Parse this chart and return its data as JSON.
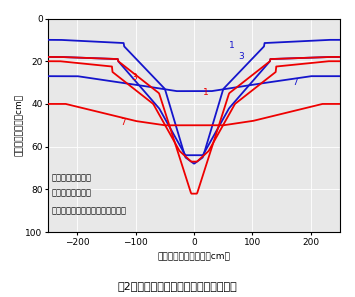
{
  "title": "図2　疏水材の有無と地下水位低減効果",
  "xlabel": "暗渠中間からの距離（cm）",
  "ylabel": "地表からの深さ（cm）",
  "xlim": [
    -250,
    250
  ],
  "ylim": [
    100,
    0
  ],
  "xticks": [
    -200,
    -100,
    0,
    100,
    200
  ],
  "yticks": [
    0,
    20,
    40,
    60,
    80,
    100
  ],
  "red_color": "#EE0000",
  "blue_color": "#1515CC",
  "bg_color": "#E8E8E8",
  "legend_line1": "疏水材あり：赤線",
  "legend_line2": "疏水材なし：青線",
  "legend_line3": "（数字は暗渠排水開始後の日数）"
}
